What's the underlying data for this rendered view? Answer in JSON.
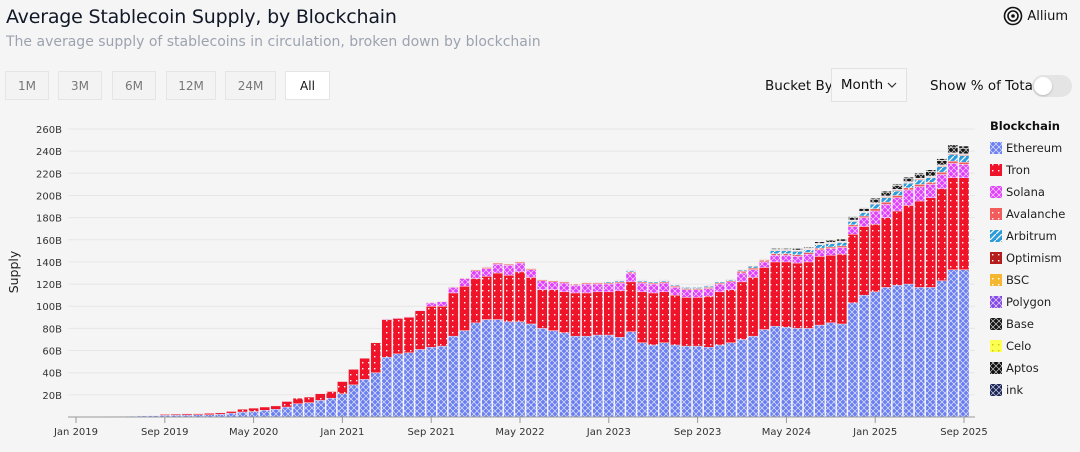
{
  "header": {
    "title": "Average Stablecoin Supply, by Blockchain",
    "subtitle": "The average supply of stablecoins in circulation, broken down by blockchain",
    "logo_text": "Allium"
  },
  "ranges": [
    {
      "label": "1M",
      "active": false
    },
    {
      "label": "3M",
      "active": false
    },
    {
      "label": "6M",
      "active": false
    },
    {
      "label": "12M",
      "active": false
    },
    {
      "label": "24M",
      "active": false
    },
    {
      "label": "All",
      "active": true
    }
  ],
  "controls": {
    "bucket_label": "Bucket By",
    "bucket_value": "Month",
    "percent_label": "Show % of Total",
    "percent_on": false
  },
  "chart_data": {
    "type": "bar",
    "stacked": true,
    "ylabel": "Supply",
    "ylim": [
      0,
      260
    ],
    "grid": true,
    "legend_title": "Blockchain",
    "legend_position": "right",
    "yticks": [
      "20B",
      "40B",
      "60B",
      "80B",
      "100B",
      "120B",
      "140B",
      "160B",
      "180B",
      "200B",
      "220B",
      "240B",
      "260B"
    ],
    "ytick_values": [
      20,
      40,
      60,
      80,
      100,
      120,
      140,
      160,
      180,
      200,
      220,
      240,
      260
    ],
    "xticks": [
      "Jan 2019",
      "Sep 2019",
      "May 2020",
      "Jan 2021",
      "Sep 2021",
      "May 2022",
      "Jan 2023",
      "Sep 2023",
      "May 2024",
      "Jan 2025",
      "Sep 2025"
    ],
    "categories": [
      "Jan 2019",
      "Feb 2019",
      "Mar 2019",
      "Apr 2019",
      "May 2019",
      "Jun 2019",
      "Jul 2019",
      "Aug 2019",
      "Sep 2019",
      "Oct 2019",
      "Nov 2019",
      "Dec 2019",
      "Jan 2020",
      "Feb 2020",
      "Mar 2020",
      "Apr 2020",
      "May 2020",
      "Jun 2020",
      "Jul 2020",
      "Aug 2020",
      "Sep 2020",
      "Oct 2020",
      "Nov 2020",
      "Dec 2020",
      "Jan 2021",
      "Feb 2021",
      "Mar 2021",
      "Apr 2021",
      "May 2021",
      "Jun 2021",
      "Jul 2021",
      "Aug 2021",
      "Sep 2021",
      "Oct 2021",
      "Nov 2021",
      "Dec 2021",
      "Jan 2022",
      "Feb 2022",
      "Mar 2022",
      "Apr 2022",
      "May 2022",
      "Jun 2022",
      "Jul 2022",
      "Aug 2022",
      "Sep 2022",
      "Oct 2022",
      "Nov 2022",
      "Dec 2022",
      "Jan 2023",
      "Feb 2023",
      "Mar 2023",
      "Apr 2023",
      "May 2023",
      "Jun 2023",
      "Jul 2023",
      "Aug 2023",
      "Sep 2023",
      "Oct 2023",
      "Nov 2023",
      "Dec 2023",
      "Jan 2024",
      "Feb 2024",
      "Mar 2024",
      "Apr 2024",
      "May 2024",
      "Jun 2024",
      "Jul 2024",
      "Aug 2024",
      "Sep 2024",
      "Oct 2024",
      "Nov 2024",
      "Dec 2024",
      "Jan 2025",
      "Feb 2025",
      "Mar 2025",
      "Apr 2025",
      "May 2025",
      "Jun 2025",
      "Jul 2025",
      "Aug 2025",
      "Sep 2025"
    ],
    "unit": "B",
    "series": [
      {
        "name": "Ethereum",
        "color": "#6b7ff0",
        "pattern": "crosshatch",
        "values": [
          0.3,
          0.3,
          0.4,
          0.5,
          0.6,
          0.8,
          1.0,
          1.2,
          1.5,
          1.6,
          1.8,
          2.0,
          2,
          2.5,
          3.5,
          4.5,
          5,
          6,
          7,
          9,
          12,
          13,
          15,
          17,
          21,
          29,
          34,
          40,
          54,
          57,
          58,
          61,
          63,
          64,
          73,
          78,
          85,
          88,
          88,
          86,
          86,
          84,
          80,
          78,
          76,
          73,
          73,
          74,
          74,
          72,
          77,
          67,
          65,
          67,
          65,
          64,
          64,
          63,
          65,
          67,
          70,
          73,
          79,
          82,
          81,
          80,
          80,
          83,
          85,
          84,
          103,
          110,
          113,
          117,
          119,
          120,
          117,
          117,
          123,
          133,
          133
        ]
      },
      {
        "name": "Tron",
        "color": "#f0142a",
        "pattern": "dots",
        "values": [
          0,
          0,
          0,
          0,
          0,
          0,
          0,
          0,
          0.8,
          0.9,
          1.0,
          1.0,
          1.3,
          1.2,
          1.5,
          2.5,
          3,
          3,
          3,
          5,
          5,
          5,
          6,
          6,
          11,
          14,
          19,
          27,
          34,
          32,
          32,
          35,
          37,
          36,
          39,
          40,
          40,
          39,
          42,
          42,
          45,
          42,
          35,
          37,
          37,
          39,
          39,
          39,
          39,
          42,
          45,
          46,
          47,
          46,
          45,
          44,
          44,
          46,
          48,
          48,
          52,
          53,
          56,
          58,
          59,
          59,
          60,
          62,
          61,
          63,
          62,
          62,
          61,
          63,
          67,
          71,
          78,
          81,
          83,
          83,
          83
        ]
      },
      {
        "name": "Solana",
        "color": "#e040fb",
        "pattern": "crosshatch",
        "values": [
          0,
          0,
          0,
          0,
          0,
          0,
          0,
          0,
          0,
          0,
          0,
          0,
          0,
          0,
          0,
          0,
          0,
          0,
          0,
          0,
          0,
          0,
          0,
          0,
          0,
          0,
          0,
          0,
          0.5,
          0.5,
          0.5,
          0.5,
          3,
          4,
          5,
          7,
          7,
          7,
          8,
          9,
          8,
          7,
          8,
          7,
          8,
          7,
          8,
          7,
          7,
          7,
          8,
          8,
          8,
          8,
          7,
          7,
          7,
          7,
          7,
          7,
          8,
          7,
          5,
          6,
          6,
          6,
          7,
          6,
          6,
          6,
          7,
          8,
          12,
          12,
          12,
          14,
          13,
          12,
          13,
          13,
          12
        ]
      },
      {
        "name": "Avalanche",
        "color": "#f25c5c",
        "pattern": "dots",
        "values": [
          0,
          0,
          0,
          0,
          0,
          0,
          0,
          0,
          0,
          0,
          0,
          0,
          0,
          0,
          0,
          0,
          0,
          0,
          0,
          0,
          0,
          0,
          0,
          0,
          0,
          0,
          0,
          0,
          0,
          0,
          0,
          0,
          0.5,
          0.5,
          0.5,
          0.5,
          1,
          1,
          1,
          1,
          1,
          1,
          1,
          1,
          1,
          1,
          1,
          1,
          1,
          1,
          1,
          1,
          1,
          1,
          1,
          1,
          1,
          1,
          1,
          1,
          1.5,
          1.5,
          1.5,
          1.5,
          1.5,
          1.5,
          1.5,
          1.5,
          1.5,
          1.5,
          1.5,
          1.5,
          2,
          2,
          2,
          2,
          2,
          2,
          2,
          2,
          2
        ]
      },
      {
        "name": "Arbitrum",
        "color": "#2d9cdb",
        "pattern": "stripes",
        "values": [
          0,
          0,
          0,
          0,
          0,
          0,
          0,
          0,
          0,
          0,
          0,
          0,
          0,
          0,
          0,
          0,
          0,
          0,
          0,
          0,
          0,
          0,
          0,
          0,
          0,
          0,
          0,
          0,
          0,
          0,
          0,
          0,
          0,
          0,
          0,
          0,
          0.3,
          0.3,
          0.3,
          0.3,
          0.3,
          0.3,
          0.3,
          0.3,
          0.3,
          0.3,
          0.3,
          0.3,
          1,
          1,
          1,
          1,
          1,
          1,
          1,
          1,
          1,
          1,
          1,
          1,
          1,
          1.5,
          0.5,
          2.5,
          2.5,
          3,
          2.5,
          3,
          3,
          3,
          3,
          3,
          4,
          4,
          4,
          4,
          4,
          4,
          5,
          6,
          6
        ]
      },
      {
        "name": "Optimism",
        "color": "#b71c1c",
        "pattern": "dots",
        "values": [
          0,
          0,
          0,
          0,
          0,
          0,
          0,
          0,
          0,
          0,
          0,
          0,
          0,
          0,
          0,
          0,
          0,
          0,
          0,
          0,
          0,
          0,
          0,
          0,
          0,
          0,
          0,
          0,
          0,
          0,
          0,
          0,
          0,
          0,
          0,
          0,
          0.2,
          0.2,
          0.2,
          0.2,
          0.2,
          0.2,
          0.2,
          0.2,
          0.2,
          0.2,
          0.2,
          0.2,
          0.3,
          0.3,
          0.3,
          0.3,
          0.3,
          0.3,
          0.3,
          0.3,
          0.3,
          0.3,
          0.3,
          0.3,
          0.5,
          0.5,
          0.5,
          0.5,
          0.5,
          0.5,
          0.5,
          0.5,
          0.5,
          0.5,
          0.5,
          0.5,
          0.6,
          0.6,
          0.6,
          0.6,
          0.6,
          0.6,
          0.6,
          0.6,
          0.6
        ]
      },
      {
        "name": "BSC",
        "color": "#f5b731",
        "pattern": "dots",
        "values": [
          0,
          0,
          0,
          0,
          0,
          0,
          0,
          0,
          0,
          0,
          0,
          0,
          0,
          0,
          0,
          0,
          0,
          0,
          0,
          0,
          0,
          0,
          0,
          0,
          0,
          0,
          0,
          0,
          0,
          0,
          0,
          0,
          0,
          0,
          0,
          0,
          0.2,
          0.2,
          0.2,
          0.2,
          0.2,
          0.2,
          0.2,
          0.2,
          0.2,
          0.2,
          0.2,
          0.2,
          0.2,
          0.2,
          0.2,
          0.2,
          0.2,
          0.2,
          0.2,
          0.2,
          0.2,
          0.2,
          0.2,
          0.2,
          0.4,
          0.4,
          0.4,
          0.4,
          0.4,
          0.4,
          0.4,
          0.4,
          0.4,
          0.4,
          0.4,
          0.4,
          0.5,
          0.5,
          0.5,
          0.5,
          0.5,
          0.5,
          0.5,
          0.5,
          0.5
        ]
      },
      {
        "name": "Polygon",
        "color": "#8247e5",
        "pattern": "crosshatch",
        "values": [
          0,
          0,
          0,
          0,
          0,
          0,
          0,
          0,
          0,
          0,
          0,
          0,
          0,
          0,
          0,
          0,
          0,
          0,
          0,
          0,
          0,
          0,
          0,
          0,
          0,
          0,
          0,
          0,
          0,
          0,
          0,
          0,
          0,
          0,
          0,
          0,
          0.2,
          0.2,
          0.2,
          0.2,
          0.2,
          0.2,
          0.2,
          0.2,
          0.2,
          0.2,
          0.2,
          0.2,
          0.3,
          0.3,
          0.3,
          0.3,
          0.3,
          0.3,
          0.3,
          0.3,
          0.3,
          0.3,
          0.3,
          0.3,
          0.4,
          0.4,
          0.4,
          0.4,
          0.4,
          0.4,
          0.4,
          0.4,
          0.4,
          0.4,
          0.4,
          0.4,
          0.5,
          0.5,
          0.5,
          0.5,
          0.5,
          0.5,
          0.5,
          0.5,
          0.5
        ]
      },
      {
        "name": "Base",
        "color": "#151515",
        "pattern": "crosshatch",
        "values": [
          0,
          0,
          0,
          0,
          0,
          0,
          0,
          0,
          0,
          0,
          0,
          0,
          0,
          0,
          0,
          0,
          0,
          0,
          0,
          0,
          0,
          0,
          0,
          0,
          0,
          0,
          0,
          0,
          0,
          0,
          0,
          0,
          0,
          0,
          0,
          0,
          0,
          0,
          0,
          0,
          0,
          0,
          0,
          0,
          0,
          0,
          0,
          0,
          0,
          0,
          0,
          0,
          0,
          0,
          0,
          0,
          0,
          0,
          0,
          0,
          0,
          0,
          0,
          1,
          1,
          1.5,
          1,
          1.5,
          2,
          2,
          2.5,
          2.5,
          3,
          3.5,
          3.5,
          3,
          3.5,
          4,
          4,
          5,
          5
        ]
      },
      {
        "name": "Celo",
        "color": "#fcff52",
        "pattern": "dots",
        "values": [
          0,
          0,
          0,
          0,
          0,
          0,
          0,
          0,
          0,
          0,
          0,
          0,
          0,
          0,
          0,
          0,
          0,
          0,
          0,
          0,
          0,
          0,
          0,
          0,
          0,
          0,
          0,
          0,
          0,
          0,
          0,
          0,
          0,
          0,
          0,
          0,
          0,
          0,
          0,
          0,
          0,
          0,
          0,
          0,
          0,
          0,
          0,
          0,
          0,
          0,
          0,
          0,
          0,
          0,
          0,
          0,
          0,
          0,
          0,
          0,
          0.1,
          0.1,
          0.1,
          0.1,
          0.1,
          0.1,
          0.1,
          0.1,
          0.1,
          0.1,
          0.1,
          0.1,
          0.1,
          0.1,
          0.1,
          0.1,
          0.1,
          0.1,
          0.1,
          0.1,
          0.1
        ]
      },
      {
        "name": "Aptos",
        "color": "#111111",
        "pattern": "crosshatch",
        "values": [
          0,
          0,
          0,
          0,
          0,
          0,
          0,
          0,
          0,
          0,
          0,
          0,
          0,
          0,
          0,
          0,
          0,
          0,
          0,
          0,
          0,
          0,
          0,
          0,
          0,
          0,
          0,
          0,
          0,
          0,
          0,
          0,
          0,
          0,
          0,
          0,
          0,
          0,
          0,
          0,
          0,
          0,
          0,
          0,
          0,
          0,
          0,
          0,
          0,
          0,
          0,
          0,
          0,
          0,
          0,
          0,
          0,
          0,
          0,
          0,
          0,
          0,
          0,
          0,
          0,
          0,
          0,
          0,
          0,
          0,
          0.5,
          0.5,
          1,
          1,
          1,
          1,
          1,
          1.5,
          1.5,
          2,
          2
        ]
      },
      {
        "name": "ink",
        "color": "#1a2456",
        "pattern": "crosshatch",
        "values": [
          0,
          0,
          0,
          0,
          0,
          0,
          0,
          0,
          0,
          0,
          0,
          0,
          0,
          0,
          0,
          0,
          0,
          0,
          0,
          0,
          0,
          0,
          0,
          0,
          0,
          0,
          0,
          0,
          0,
          0,
          0,
          0,
          0,
          0,
          0,
          0,
          0,
          0,
          0,
          0,
          0,
          0,
          0,
          0,
          0,
          0,
          0,
          0,
          0,
          0,
          0,
          0,
          0,
          0,
          0,
          0,
          0,
          0,
          0,
          0,
          0,
          0,
          0,
          0,
          0,
          0,
          0,
          0,
          0,
          0,
          0,
          0,
          0.2,
          0.2,
          0.2,
          0.2,
          0.2,
          0.2,
          0.2,
          0.2,
          0.2
        ]
      }
    ]
  }
}
